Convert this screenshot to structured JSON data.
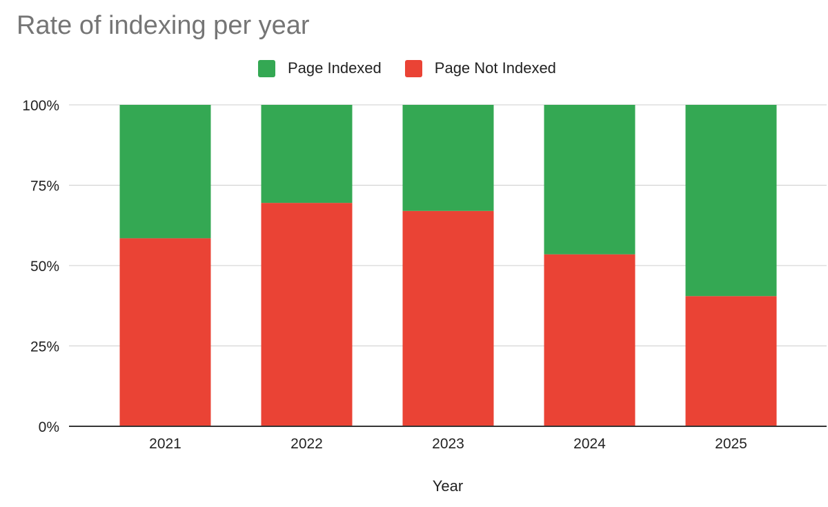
{
  "chart_data": {
    "type": "bar",
    "stacked": true,
    "percent_stacked": true,
    "title": "Rate of indexing per year",
    "xlabel": "Year",
    "ylabel": "",
    "categories": [
      "2021",
      "2022",
      "2023",
      "2024",
      "2025"
    ],
    "series": [
      {
        "name": "Page Not Indexed",
        "color": "#EA4335",
        "values": [
          58.5,
          69.5,
          67,
          53.5,
          40.5
        ]
      },
      {
        "name": "Page Indexed",
        "color": "#34A853",
        "values": [
          41.5,
          30.5,
          33,
          46.5,
          59.5
        ]
      }
    ],
    "ylim": [
      0,
      100
    ],
    "yticks": [
      "0%",
      "25%",
      "50%",
      "75%",
      "100%"
    ],
    "ytick_values": [
      0,
      25,
      50,
      75,
      100
    ],
    "grid": true,
    "legend_position": "top-center"
  }
}
